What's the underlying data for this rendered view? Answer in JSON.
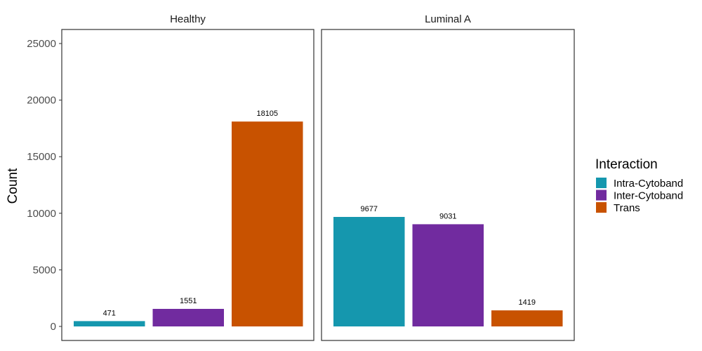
{
  "chart_data": {
    "type": "bar",
    "facets": [
      "Healthy",
      "Luminal A"
    ],
    "categories": [
      "Intra-Cytoband",
      "Inter-Cytoband",
      "Trans"
    ],
    "series": [
      {
        "facet": "Healthy",
        "values": [
          471,
          1551,
          18105
        ]
      },
      {
        "facet": "Luminal A",
        "values": [
          9677,
          9031,
          1419
        ]
      }
    ],
    "value_labels": [
      [
        "471",
        "1551",
        "18105"
      ],
      [
        "9677",
        "9031",
        "1419"
      ]
    ],
    "title": "",
    "xlabel": "",
    "ylabel": "Count",
    "ylim": [
      0,
      25000
    ],
    "yticks": [
      0,
      5000,
      10000,
      15000,
      20000,
      25000
    ],
    "ytick_labels": [
      "0",
      "5000",
      "10000",
      "15000",
      "20000",
      "25000"
    ],
    "grid": false,
    "legend": {
      "title": "Interaction",
      "placement": "right",
      "entries": [
        "Intra-Cytoband",
        "Inter-Cytoband",
        "Trans"
      ]
    },
    "colors": [
      "#1597ae",
      "#712b9f",
      "#c85200"
    ]
  }
}
